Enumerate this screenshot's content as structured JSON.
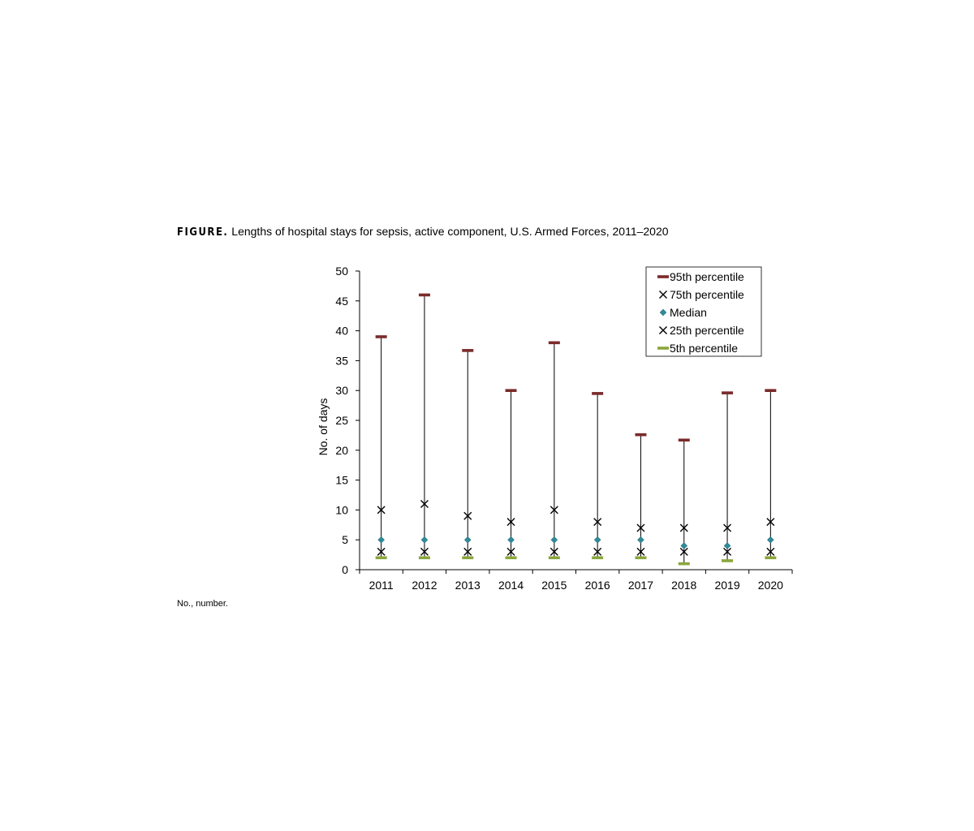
{
  "figure": {
    "label": "FIGURE.",
    "caption": "Lengths of hospital stays for sepsis, active component, U.S. Armed Forces, 2011–2020",
    "footnote": "No., number."
  },
  "chart_data": {
    "type": "scatter",
    "title": "",
    "ylabel": "No. of days",
    "xlabel": "",
    "ylim": [
      0,
      50
    ],
    "yticks": [
      "0",
      "5",
      "10",
      "15",
      "20",
      "25",
      "30",
      "35",
      "40",
      "45",
      "50"
    ],
    "categories": [
      "2011",
      "2012",
      "2013",
      "2014",
      "2015",
      "2016",
      "2017",
      "2018",
      "2019",
      "2020"
    ],
    "grid": false,
    "legend_position": "top-right",
    "series": [
      {
        "name": "95th percentile",
        "marker": "dash",
        "color": "#7b2a2a",
        "values": [
          39,
          46,
          36.7,
          30,
          38,
          29.5,
          22.6,
          21.7,
          29.6,
          30
        ]
      },
      {
        "name": "75th percentile",
        "marker": "x",
        "color": "#000000",
        "values": [
          10,
          11,
          9,
          8,
          10,
          8,
          7,
          7,
          7,
          8
        ]
      },
      {
        "name": "Median",
        "marker": "diamond",
        "color": "#2e8b9a",
        "values": [
          5,
          5,
          5,
          5,
          5,
          5,
          5,
          4,
          4,
          5
        ]
      },
      {
        "name": "25th percentile",
        "marker": "x",
        "color": "#000000",
        "values": [
          3,
          3,
          3,
          3,
          3,
          3,
          3,
          3,
          3,
          3
        ]
      },
      {
        "name": "5th percentile",
        "marker": "dash",
        "color": "#8aa63c",
        "values": [
          2,
          2,
          2,
          2,
          2,
          2,
          2,
          1,
          1.5,
          2
        ]
      }
    ]
  }
}
